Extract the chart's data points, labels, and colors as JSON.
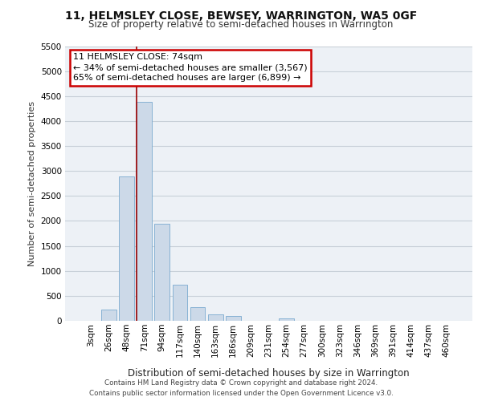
{
  "title": "11, HELMSLEY CLOSE, BEWSEY, WARRINGTON, WA5 0GF",
  "subtitle": "Size of property relative to semi-detached houses in Warrington",
  "xlabel": "Distribution of semi-detached houses by size in Warrington",
  "ylabel": "Number of semi-detached properties",
  "categories": [
    "3sqm",
    "26sqm",
    "48sqm",
    "71sqm",
    "94sqm",
    "117sqm",
    "140sqm",
    "163sqm",
    "186sqm",
    "209sqm",
    "231sqm",
    "254sqm",
    "277sqm",
    "300sqm",
    "323sqm",
    "346sqm",
    "369sqm",
    "391sqm",
    "414sqm",
    "437sqm",
    "460sqm"
  ],
  "values": [
    0,
    230,
    2890,
    4390,
    1940,
    730,
    280,
    130,
    90,
    0,
    0,
    50,
    0,
    0,
    0,
    0,
    0,
    0,
    0,
    0,
    0
  ],
  "bar_color": "#ccd9e8",
  "bar_edgecolor": "#7aaacf",
  "highlight_vline_x": 3,
  "vline_color": "#990000",
  "annotation_text": "11 HELMSLEY CLOSE: 74sqm\n← 34% of semi-detached houses are smaller (3,567)\n65% of semi-detached houses are larger (6,899) →",
  "annotation_box_facecolor": "#ffffff",
  "annotation_box_edgecolor": "#cc0000",
  "ylim": [
    0,
    5500
  ],
  "yticks": [
    0,
    500,
    1000,
    1500,
    2000,
    2500,
    3000,
    3500,
    4000,
    4500,
    5000,
    5500
  ],
  "grid_color": "#c8d0d8",
  "plot_bg_color": "#edf1f6",
  "footer_line1": "Contains HM Land Registry data © Crown copyright and database right 2024.",
  "footer_line2": "Contains public sector information licensed under the Open Government Licence v3.0."
}
